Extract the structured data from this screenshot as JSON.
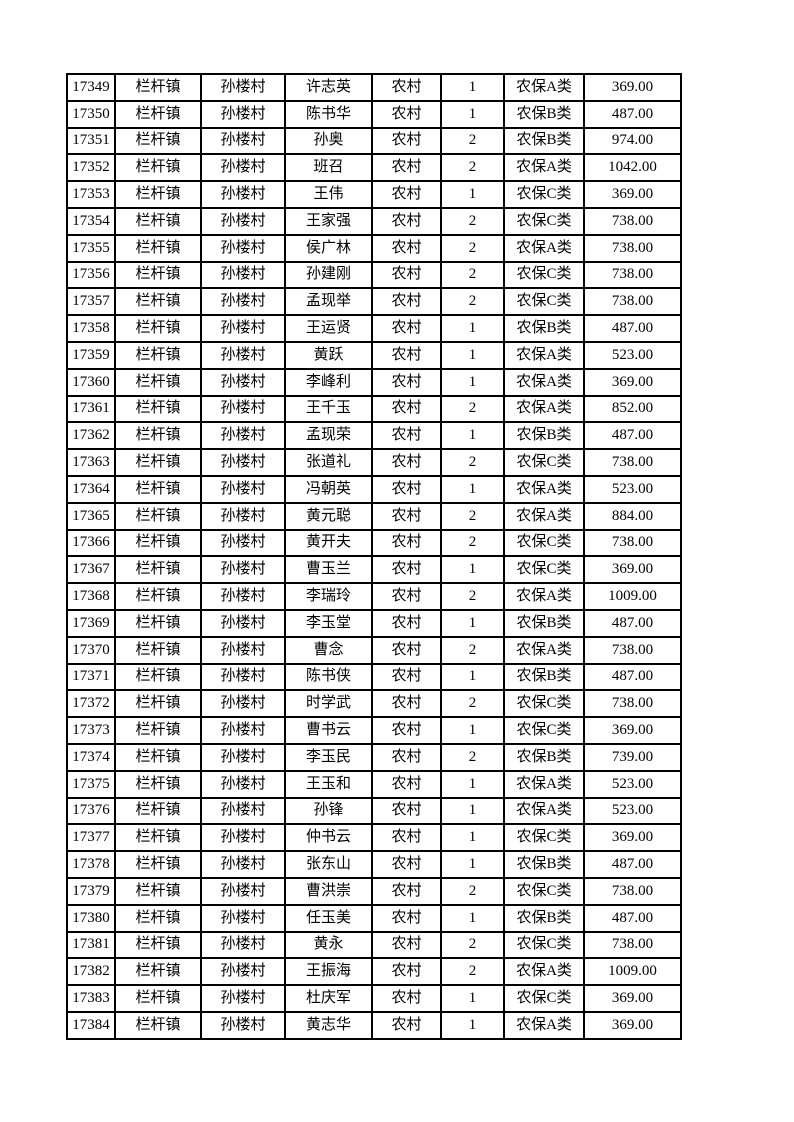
{
  "page": {
    "background_color": "#ffffff",
    "text_color": "#000000",
    "border_color": "#000000",
    "description": "Continuation page of a rural social insurance payment roster table, rows 17349-17384, no header row visible"
  },
  "table": {
    "column_keys": [
      "id",
      "town",
      "village",
      "name",
      "area-type",
      "person-count",
      "insurance-category",
      "amount"
    ],
    "rows": [
      [
        "17349",
        "栏杆镇",
        "孙楼村",
        "许志英",
        "农村",
        "1",
        "农保A类",
        "369.00"
      ],
      [
        "17350",
        "栏杆镇",
        "孙楼村",
        "陈书华",
        "农村",
        "1",
        "农保B类",
        "487.00"
      ],
      [
        "17351",
        "栏杆镇",
        "孙楼村",
        "孙奥",
        "农村",
        "2",
        "农保B类",
        "974.00"
      ],
      [
        "17352",
        "栏杆镇",
        "孙楼村",
        "班召",
        "农村",
        "2",
        "农保A类",
        "1042.00"
      ],
      [
        "17353",
        "栏杆镇",
        "孙楼村",
        "王伟",
        "农村",
        "1",
        "农保C类",
        "369.00"
      ],
      [
        "17354",
        "栏杆镇",
        "孙楼村",
        "王家强",
        "农村",
        "2",
        "农保C类",
        "738.00"
      ],
      [
        "17355",
        "栏杆镇",
        "孙楼村",
        "侯广林",
        "农村",
        "2",
        "农保A类",
        "738.00"
      ],
      [
        "17356",
        "栏杆镇",
        "孙楼村",
        "孙建刚",
        "农村",
        "2",
        "农保C类",
        "738.00"
      ],
      [
        "17357",
        "栏杆镇",
        "孙楼村",
        "孟现举",
        "农村",
        "2",
        "农保C类",
        "738.00"
      ],
      [
        "17358",
        "栏杆镇",
        "孙楼村",
        "王运贤",
        "农村",
        "1",
        "农保B类",
        "487.00"
      ],
      [
        "17359",
        "栏杆镇",
        "孙楼村",
        "黄跃",
        "农村",
        "1",
        "农保A类",
        "523.00"
      ],
      [
        "17360",
        "栏杆镇",
        "孙楼村",
        "李峰利",
        "农村",
        "1",
        "农保A类",
        "369.00"
      ],
      [
        "17361",
        "栏杆镇",
        "孙楼村",
        "王千玉",
        "农村",
        "2",
        "农保A类",
        "852.00"
      ],
      [
        "17362",
        "栏杆镇",
        "孙楼村",
        "孟现荣",
        "农村",
        "1",
        "农保B类",
        "487.00"
      ],
      [
        "17363",
        "栏杆镇",
        "孙楼村",
        "张道礼",
        "农村",
        "2",
        "农保C类",
        "738.00"
      ],
      [
        "17364",
        "栏杆镇",
        "孙楼村",
        "冯朝英",
        "农村",
        "1",
        "农保A类",
        "523.00"
      ],
      [
        "17365",
        "栏杆镇",
        "孙楼村",
        "黄元聪",
        "农村",
        "2",
        "农保A类",
        "884.00"
      ],
      [
        "17366",
        "栏杆镇",
        "孙楼村",
        "黄开夫",
        "农村",
        "2",
        "农保C类",
        "738.00"
      ],
      [
        "17367",
        "栏杆镇",
        "孙楼村",
        "曹玉兰",
        "农村",
        "1",
        "农保C类",
        "369.00"
      ],
      [
        "17368",
        "栏杆镇",
        "孙楼村",
        "李瑞玲",
        "农村",
        "2",
        "农保A类",
        "1009.00"
      ],
      [
        "17369",
        "栏杆镇",
        "孙楼村",
        "李玉堂",
        "农村",
        "1",
        "农保B类",
        "487.00"
      ],
      [
        "17370",
        "栏杆镇",
        "孙楼村",
        "曹念",
        "农村",
        "2",
        "农保A类",
        "738.00"
      ],
      [
        "17371",
        "栏杆镇",
        "孙楼村",
        "陈书侠",
        "农村",
        "1",
        "农保B类",
        "487.00"
      ],
      [
        "17372",
        "栏杆镇",
        "孙楼村",
        "时学武",
        "农村",
        "2",
        "农保C类",
        "738.00"
      ],
      [
        "17373",
        "栏杆镇",
        "孙楼村",
        "曹书云",
        "农村",
        "1",
        "农保C类",
        "369.00"
      ],
      [
        "17374",
        "栏杆镇",
        "孙楼村",
        "李玉民",
        "农村",
        "2",
        "农保B类",
        "739.00"
      ],
      [
        "17375",
        "栏杆镇",
        "孙楼村",
        "王玉和",
        "农村",
        "1",
        "农保A类",
        "523.00"
      ],
      [
        "17376",
        "栏杆镇",
        "孙楼村",
        "孙锋",
        "农村",
        "1",
        "农保A类",
        "523.00"
      ],
      [
        "17377",
        "栏杆镇",
        "孙楼村",
        "仲书云",
        "农村",
        "1",
        "农保C类",
        "369.00"
      ],
      [
        "17378",
        "栏杆镇",
        "孙楼村",
        "张东山",
        "农村",
        "1",
        "农保B类",
        "487.00"
      ],
      [
        "17379",
        "栏杆镇",
        "孙楼村",
        "曹洪崇",
        "农村",
        "2",
        "农保C类",
        "738.00"
      ],
      [
        "17380",
        "栏杆镇",
        "孙楼村",
        "任玉美",
        "农村",
        "1",
        "农保B类",
        "487.00"
      ],
      [
        "17381",
        "栏杆镇",
        "孙楼村",
        "黄永",
        "农村",
        "2",
        "农保C类",
        "738.00"
      ],
      [
        "17382",
        "栏杆镇",
        "孙楼村",
        "王振海",
        "农村",
        "2",
        "农保A类",
        "1009.00"
      ],
      [
        "17383",
        "栏杆镇",
        "孙楼村",
        "杜庆军",
        "农村",
        "1",
        "农保C类",
        "369.00"
      ],
      [
        "17384",
        "栏杆镇",
        "孙楼村",
        "黄志华",
        "农村",
        "1",
        "农保A类",
        "369.00"
      ]
    ]
  }
}
